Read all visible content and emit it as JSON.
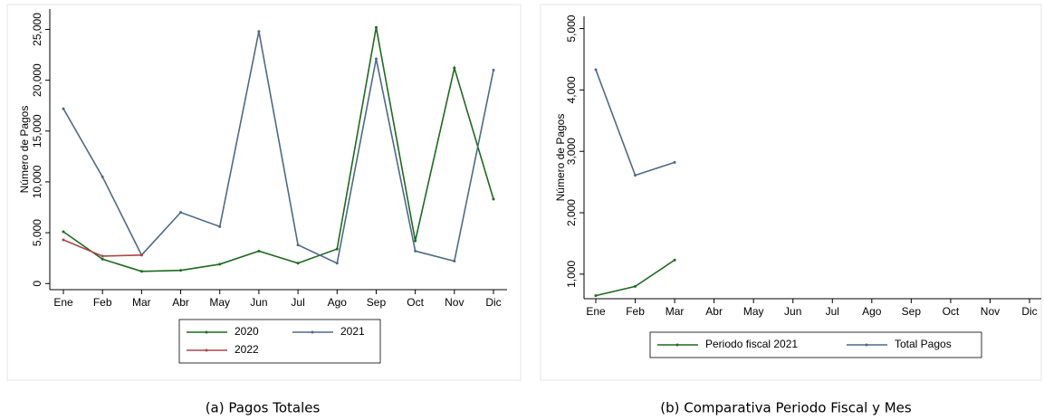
{
  "chart_data": [
    {
      "type": "line",
      "caption": "(a) Pagos Totales",
      "ylabel": "Número de Pagos",
      "categories": [
        "Ene",
        "Feb",
        "Mar",
        "Abr",
        "May",
        "Jun",
        "Jul",
        "Ago",
        "Sep",
        "Oct",
        "Nov",
        "Dic"
      ],
      "series": [
        {
          "name": "2020",
          "color": "#1d6b1d",
          "values": [
            5100,
            2400,
            1200,
            1300,
            1900,
            3200,
            2000,
            3400,
            25200,
            4200,
            21200,
            8300
          ]
        },
        {
          "name": "2021",
          "color": "#4d6a88",
          "values": [
            17200,
            10500,
            2800,
            7000,
            5600,
            24800,
            3800,
            2000,
            22100,
            3200,
            2200,
            21000
          ]
        },
        {
          "name": "2022",
          "color": "#a84848",
          "values": [
            4300,
            2700,
            2800,
            null,
            null,
            null,
            null,
            null,
            null,
            null,
            null,
            null
          ]
        }
      ],
      "ylim": [
        -600,
        27000
      ],
      "yticks": [
        0,
        {
          "value": 5000,
          "label": "5,000"
        },
        {
          "value": 10000,
          "label": "10,000"
        },
        {
          "value": 15000,
          "label": "15,000"
        },
        {
          "value": 20000,
          "label": "20,000"
        },
        {
          "value": 25000,
          "label": "25,000"
        }
      ],
      "grid": false,
      "legend": "bottom"
    },
    {
      "type": "line",
      "caption": "(b) Comparativa Periodo Fiscal y Mes",
      "ylabel": "Número de Pagos",
      "categories": [
        "Ene",
        "Feb",
        "Mar",
        "Abr",
        "May",
        "Jun",
        "Jul",
        "Ago",
        "Sep",
        "Oct",
        "Nov",
        "Dic"
      ],
      "series": [
        {
          "name": "Periodo fiscal 2021",
          "color": "#1d6b1d",
          "values": [
            650,
            800,
            1230,
            null,
            null,
            null,
            null,
            null,
            null,
            null,
            null,
            null
          ]
        },
        {
          "name": "Total Pagos",
          "color": "#4d6a88",
          "values": [
            4330,
            2610,
            2820,
            null,
            null,
            null,
            null,
            null,
            null,
            null,
            null,
            null
          ]
        }
      ],
      "ylim": [
        600,
        5200
      ],
      "yticks": [
        {
          "value": 1000,
          "label": "1,000"
        },
        {
          "value": 2000,
          "label": "2,000"
        },
        {
          "value": 3000,
          "label": "3,000"
        },
        {
          "value": 4000,
          "label": "4,000"
        },
        {
          "value": 5000,
          "label": "5,000"
        }
      ],
      "grid": false,
      "legend": "bottom"
    }
  ]
}
